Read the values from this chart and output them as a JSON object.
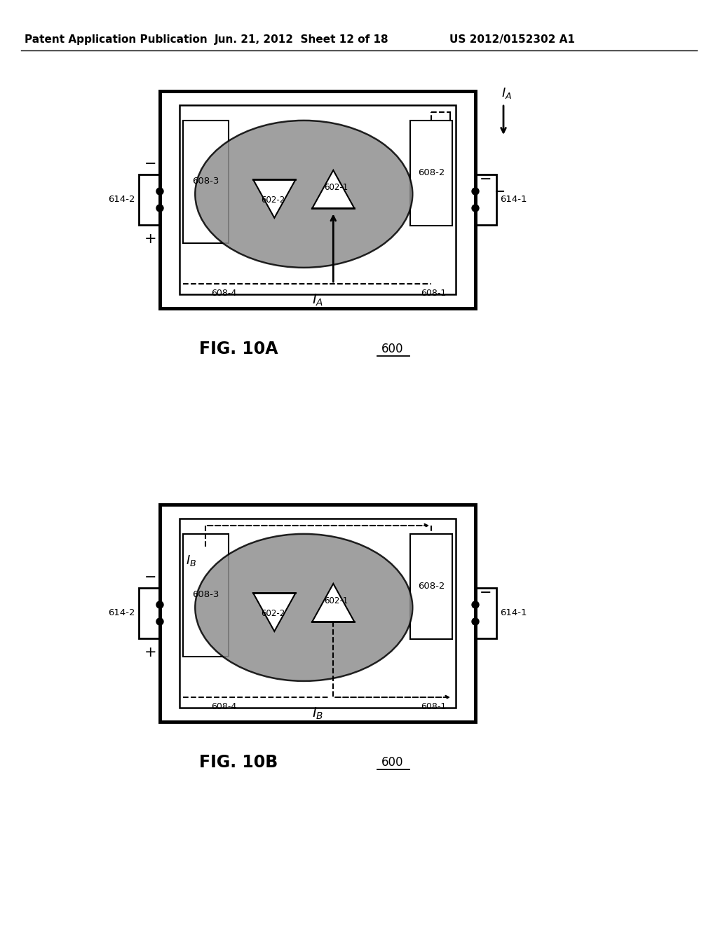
{
  "bg_color": "#ffffff",
  "header_text": "Patent Application Publication",
  "header_date": "Jun. 21, 2012  Sheet 12 of 18",
  "header_patent": "US 2012/0152302 A1",
  "fig_A_label": "FIG. 10A",
  "fig_B_label": "FIG. 10B",
  "ref_600": "600",
  "labels": {
    "608_1": "608-1",
    "608_2": "608-2",
    "608_3": "608-3",
    "608_4": "608-4",
    "602_1": "602-1",
    "602_2": "602-2",
    "614_1": "614-1",
    "614_2": "614-2"
  }
}
